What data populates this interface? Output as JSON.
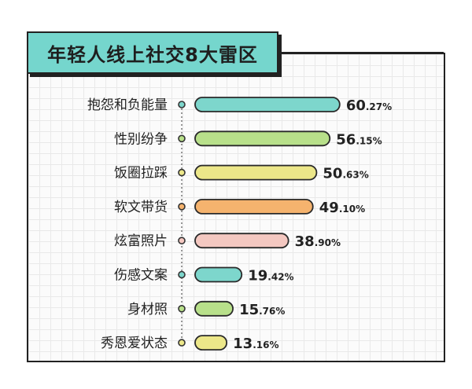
{
  "chart_data": {
    "type": "bar",
    "orientation": "horizontal",
    "title": "年轻人线上社交8大雷区",
    "categories": [
      "抱怨和负能量",
      "性别纷争",
      "饭圈拉踩",
      "软文带货",
      "炫富照片",
      "伤感文案",
      "身材照",
      "秀恩爱状态"
    ],
    "values": [
      60.27,
      56.15,
      50.63,
      49.1,
      38.9,
      19.42,
      15.76,
      13.16
    ],
    "value_labels": [
      "60.27%",
      "56.15%",
      "50.63%",
      "49.10%",
      "38.90%",
      "19.42%",
      "15.76%",
      "13.16%"
    ],
    "bar_colors": [
      "#7dd6cc",
      "#b8e08a",
      "#ece789",
      "#f5b36e",
      "#f4c8c1",
      "#7dd6cc",
      "#b8e08a",
      "#ece789"
    ],
    "xlim": [
      0,
      100
    ],
    "grid": true,
    "legend": "none"
  }
}
